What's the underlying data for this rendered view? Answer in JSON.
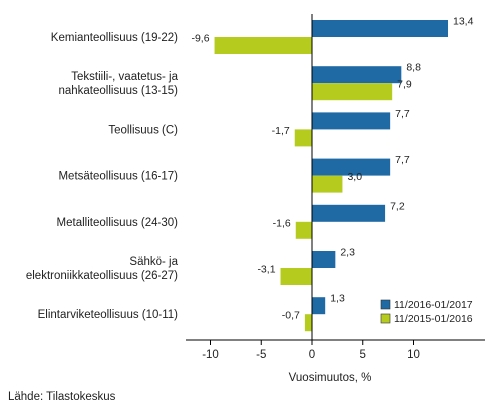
{
  "chart_data": {
    "type": "bar",
    "orientation": "horizontal",
    "categories": [
      [
        "Kemianteollisuus (19-22)"
      ],
      [
        "Tekstiili-, vaatetus- ja",
        "nahkateollisuus (13-15)"
      ],
      [
        "Teollisuus (C)"
      ],
      [
        "Metsäteollisuus (16-17)"
      ],
      [
        "Metalliteollisuus (24-30)"
      ],
      [
        "Sähkö- ja",
        "elektroniikkateollisuus (26-27)"
      ],
      [
        "Elintarviketeollisuus (10-11)"
      ]
    ],
    "series": [
      {
        "name": "11/2016-01/2017",
        "color": "#1f6aa5",
        "values": [
          13.4,
          8.8,
          7.7,
          7.7,
          7.2,
          2.3,
          1.3
        ],
        "labels": [
          "13,4",
          "8,8",
          "7,7",
          "7,7",
          "7,2",
          "2,3",
          "1,3"
        ]
      },
      {
        "name": "11/2015-01/2016",
        "color": "#b5cc1f",
        "values": [
          -9.6,
          7.9,
          -1.7,
          3.0,
          -1.6,
          -3.1,
          -0.7
        ],
        "labels": [
          "-9,6",
          "7,9",
          "-1,7",
          "3,0",
          "-1,6",
          "-3,1",
          "-0,7"
        ]
      }
    ],
    "xlabel": "Vuosimuutos, %",
    "xlim": [
      -12.5,
      15
    ],
    "xticks": [
      -10,
      -5,
      0,
      5,
      10
    ],
    "xtick_labels": [
      "-10",
      "-5",
      "0",
      "5",
      "10"
    ],
    "grid": false,
    "legend_position": "bottom-right"
  },
  "source_text": "Lähde: Tilastokeskus"
}
